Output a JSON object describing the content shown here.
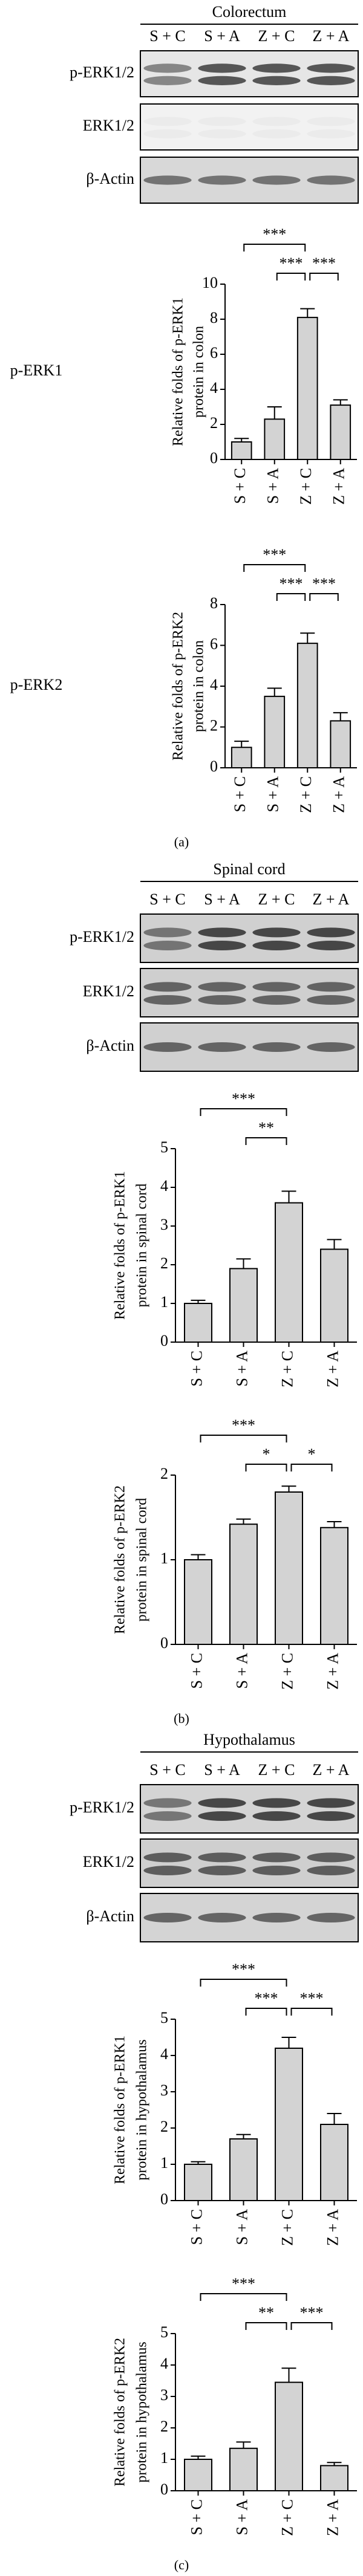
{
  "panels": [
    {
      "tissue": "Colorectum",
      "lanes": [
        "S + C",
        "S + A",
        "Z + C",
        "Z + A"
      ],
      "blot_rows": [
        "p-ERK1/2",
        "ERK1/2",
        "β-Actin"
      ],
      "caption": "(a)"
    },
    {
      "tissue": "Spinal cord",
      "lanes": [
        "S + C",
        "S + A",
        "Z + C",
        "Z + A"
      ],
      "blot_rows": [
        "p-ERK1/2",
        "ERK1/2",
        "β-Actin"
      ],
      "caption": "(b)"
    },
    {
      "tissue": "Hypothalamus",
      "lanes": [
        "S + C",
        "S + A",
        "Z + C",
        "Z + A"
      ],
      "blot_rows": [
        "p-ERK1/2",
        "ERK1/2",
        "β-Actin"
      ],
      "caption": "(c)"
    }
  ],
  "chart_data": [
    {
      "type": "bar",
      "side_label": "p-ERK1",
      "y_label": [
        "Relative folds of p-ERK1",
        "protein in colon"
      ],
      "categories": [
        "S + C",
        "S + A",
        "Z + C",
        "Z + A"
      ],
      "values": [
        1.0,
        2.3,
        8.1,
        3.1
      ],
      "errors": [
        0.2,
        0.7,
        0.5,
        0.3
      ],
      "ylim": [
        0,
        10
      ],
      "yticks": [
        0,
        2,
        4,
        6,
        8,
        10
      ],
      "color": "#d3d3d3",
      "significance": [
        {
          "between": [
            "S + C",
            "Z + C"
          ],
          "label": "***"
        },
        {
          "between": [
            "S + A",
            "Z + C"
          ],
          "label": "***"
        },
        {
          "between": [
            "Z + C",
            "Z + A"
          ],
          "label": "***"
        }
      ]
    },
    {
      "type": "bar",
      "side_label": "p-ERK2",
      "y_label": [
        "Relative folds of p-ERK2",
        "protein in colon"
      ],
      "categories": [
        "S + C",
        "S + A",
        "Z + C",
        "Z + A"
      ],
      "values": [
        1.0,
        3.5,
        6.1,
        2.3
      ],
      "errors": [
        0.3,
        0.4,
        0.5,
        0.4
      ],
      "ylim": [
        0,
        8
      ],
      "yticks": [
        0,
        2,
        4,
        6,
        8
      ],
      "color": "#d3d3d3",
      "significance": [
        {
          "between": [
            "S + C",
            "Z + C"
          ],
          "label": "***"
        },
        {
          "between": [
            "S + A",
            "Z + C"
          ],
          "label": "***"
        },
        {
          "between": [
            "Z + C",
            "Z + A"
          ],
          "label": "***"
        }
      ]
    },
    {
      "type": "bar",
      "y_label": [
        "Relative folds of p-ERK1",
        "protein in spinal cord"
      ],
      "categories": [
        "S + C",
        "S + A",
        "Z + C",
        "Z + A"
      ],
      "values": [
        1.0,
        1.9,
        3.6,
        2.4
      ],
      "errors": [
        0.08,
        0.25,
        0.3,
        0.25
      ],
      "ylim": [
        0,
        5
      ],
      "yticks": [
        0,
        1,
        2,
        3,
        4,
        5
      ],
      "color": "#d3d3d3",
      "significance": [
        {
          "between": [
            "S + C",
            "Z + C"
          ],
          "label": "***"
        },
        {
          "between": [
            "S + A",
            "Z + C"
          ],
          "label": "**"
        }
      ]
    },
    {
      "type": "bar",
      "y_label": [
        "Relative folds of p-ERK2",
        "protein in spinal cord"
      ],
      "categories": [
        "S + C",
        "S + A",
        "Z + C",
        "Z + A"
      ],
      "values": [
        1.0,
        1.42,
        1.8,
        1.38
      ],
      "errors": [
        0.06,
        0.06,
        0.07,
        0.07
      ],
      "ylim": [
        0,
        2
      ],
      "yticks": [
        0,
        1,
        2
      ],
      "color": "#d3d3d3",
      "significance": [
        {
          "between": [
            "S + C",
            "Z + C"
          ],
          "label": "***"
        },
        {
          "between": [
            "S + A",
            "Z + C"
          ],
          "label": "*"
        },
        {
          "between": [
            "Z + C",
            "Z + A"
          ],
          "label": "*"
        }
      ]
    },
    {
      "type": "bar",
      "y_label": [
        "Relative folds of p-ERK1",
        "protein in hypothalamus"
      ],
      "categories": [
        "S + C",
        "S + A",
        "Z + C",
        "Z + A"
      ],
      "values": [
        1.0,
        1.7,
        4.2,
        2.1
      ],
      "errors": [
        0.07,
        0.12,
        0.3,
        0.3
      ],
      "ylim": [
        0,
        5
      ],
      "yticks": [
        0,
        1,
        2,
        3,
        4,
        5
      ],
      "color": "#d3d3d3",
      "significance": [
        {
          "between": [
            "S + C",
            "Z + C"
          ],
          "label": "***"
        },
        {
          "between": [
            "S + A",
            "Z + C"
          ],
          "label": "***"
        },
        {
          "between": [
            "Z + C",
            "Z + A"
          ],
          "label": "***"
        }
      ]
    },
    {
      "type": "bar",
      "y_label": [
        "Relative folds of p-ERK2",
        "protein in hypothalamus"
      ],
      "categories": [
        "S + C",
        "S + A",
        "Z + C",
        "Z + A"
      ],
      "values": [
        1.0,
        1.35,
        3.45,
        0.8
      ],
      "errors": [
        0.1,
        0.2,
        0.45,
        0.1
      ],
      "ylim": [
        0,
        5
      ],
      "yticks": [
        0,
        1,
        2,
        3,
        4,
        5
      ],
      "color": "#d3d3d3",
      "significance": [
        {
          "between": [
            "S + C",
            "Z + C"
          ],
          "label": "***"
        },
        {
          "between": [
            "S + A",
            "Z + C"
          ],
          "label": "**"
        },
        {
          "between": [
            "Z + C",
            "Z + A"
          ],
          "label": "***"
        }
      ]
    }
  ]
}
